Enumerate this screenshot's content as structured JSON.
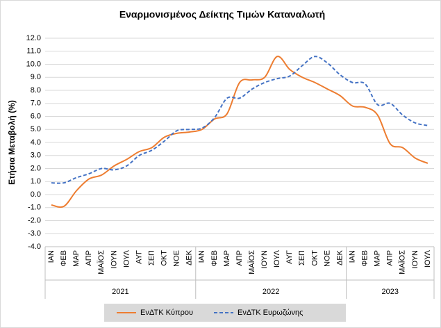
{
  "chart_data": {
    "type": "line",
    "title": "Εναρμονισμένος Δείκτης Τιμών Καταναλωτή",
    "y_label": "Ετήσια Μεταβολή (%)",
    "category_groups": [
      {
        "name": "2021",
        "categories": [
          "ΙΑΝ",
          "ΦΕΒ",
          "ΜΑΡ",
          "ΑΠΡ",
          "ΜΑΪΟΣ",
          "ΙΟΥΝ",
          "ΙΟΥΛ",
          "ΑΥΓ",
          "ΣΕΠ",
          "ΟΚΤ",
          "ΝΟΕ",
          "ΔΕΚ"
        ]
      },
      {
        "name": "2022",
        "categories": [
          "ΙΑΝ",
          "ΦΕΒ",
          "ΜΑΡ",
          "ΑΠΡ",
          "ΜΑΪΟΣ",
          "ΙΟΥΝ",
          "ΙΟΥΛ",
          "ΑΥΓ",
          "ΣΕΠ",
          "ΟΚΤ",
          "ΝΟΕ",
          "ΔΕΚ"
        ]
      },
      {
        "name": "2023",
        "categories": [
          "ΙΑΝ",
          "ΦΕΒ",
          "ΜΑΡ",
          "ΑΠΡ",
          "ΜΑΪΟΣ",
          "ΙΟΥΝ",
          "ΙΟΥΛ"
        ]
      }
    ],
    "series": [
      {
        "name": "ΕνΔΤΚ Κύπρου",
        "color": "#ed7d31",
        "dash": false,
        "values": [
          -0.8,
          -0.9,
          0.3,
          1.2,
          1.5,
          2.2,
          2.7,
          3.3,
          3.6,
          4.4,
          4.7,
          4.8,
          5.0,
          5.8,
          6.2,
          8.6,
          8.8,
          9.0,
          10.6,
          9.6,
          9.0,
          8.6,
          8.1,
          7.6,
          6.8,
          6.7,
          6.1,
          3.9,
          3.6,
          2.8,
          2.4
        ]
      },
      {
        "name": "ΕνΔΤΚ Ευρωζώνης",
        "color": "#4472c4",
        "dash": true,
        "values": [
          0.9,
          0.9,
          1.3,
          1.6,
          2.0,
          1.9,
          2.2,
          3.0,
          3.4,
          4.1,
          4.9,
          5.0,
          5.1,
          5.9,
          7.4,
          7.4,
          8.1,
          8.6,
          8.9,
          9.1,
          9.9,
          10.6,
          10.1,
          9.2,
          8.6,
          8.5,
          6.9,
          7.0,
          6.1,
          5.5,
          5.3
        ]
      }
    ],
    "ylim": [
      -4,
      12
    ],
    "yticks": [
      {
        "value": -4,
        "label": "-4.0"
      },
      {
        "value": -3,
        "label": "-3.0"
      },
      {
        "value": -2,
        "label": "-2.0"
      },
      {
        "value": -1,
        "label": "-1.0"
      },
      {
        "value": 0,
        "label": "0.0"
      },
      {
        "value": 1,
        "label": "1.0"
      },
      {
        "value": 2,
        "label": "2.0"
      },
      {
        "value": 3,
        "label": "3.0"
      },
      {
        "value": 4,
        "label": "4.0"
      },
      {
        "value": 5,
        "label": "5.0"
      },
      {
        "value": 6,
        "label": "6.0"
      },
      {
        "value": 7,
        "label": "7.0"
      },
      {
        "value": 8,
        "label": "8.0"
      },
      {
        "value": 9,
        "label": "9.0"
      },
      {
        "value": 10,
        "label": "10.0"
      },
      {
        "value": 11,
        "label": "11.0"
      },
      {
        "value": 12,
        "label": "12.0"
      }
    ],
    "grid": true,
    "legend": "bottom"
  }
}
